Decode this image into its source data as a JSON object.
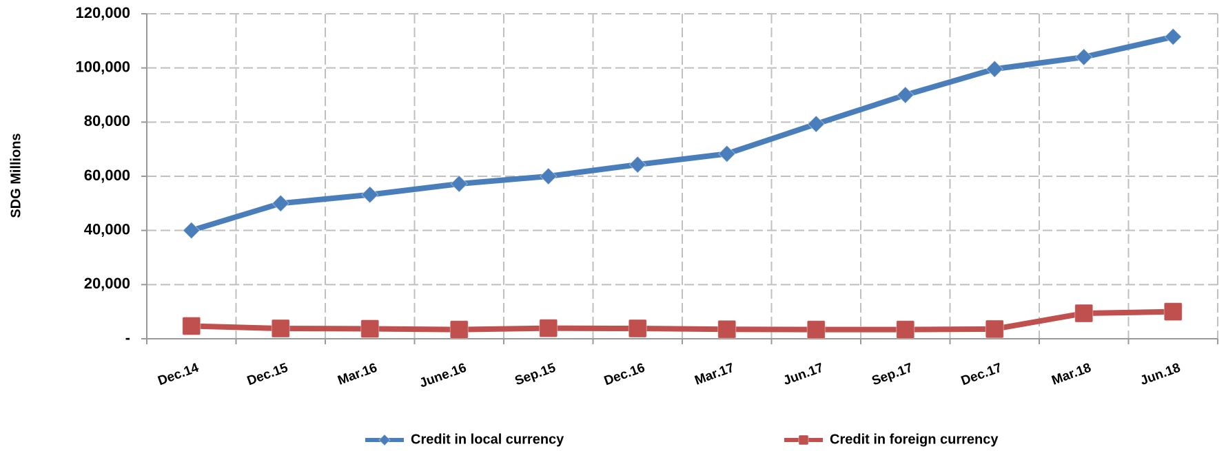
{
  "chart_data": {
    "type": "line",
    "y_label": "SDG Millions",
    "categories": [
      "Dec.14",
      "Dec.15",
      "Mar.16",
      "June.16",
      "Sep.15",
      "Dec.16",
      "Mar.17",
      "Jun.17",
      "Sep.17",
      "Dec.17",
      "Mar.18",
      "Jun.18"
    ],
    "series": [
      {
        "name": "Credit in local currency",
        "color": "#4a7ebb",
        "marker": "diamond",
        "values": [
          40000,
          50000,
          53200,
          57200,
          60000,
          64300,
          68300,
          79300,
          90000,
          99600,
          104000,
          111500
        ]
      },
      {
        "name": "Credit in foreign currency",
        "color": "#c0504d",
        "marker": "square",
        "values": [
          4700,
          3800,
          3700,
          3400,
          3900,
          3800,
          3500,
          3400,
          3400,
          3600,
          9400,
          10000
        ]
      }
    ],
    "ylim": [
      0,
      120000
    ],
    "yticks": [
      {
        "value": 0,
        "label": "-"
      },
      {
        "value": 20000,
        "label": "20,000"
      },
      {
        "value": 40000,
        "label": "40,000"
      },
      {
        "value": 60000,
        "label": "60,000"
      },
      {
        "value": 80000,
        "label": "80,000"
      },
      {
        "value": 100000,
        "label": "100,000"
      },
      {
        "value": 120000,
        "label": "120,000"
      }
    ],
    "grid": true,
    "legend": "bottom"
  }
}
